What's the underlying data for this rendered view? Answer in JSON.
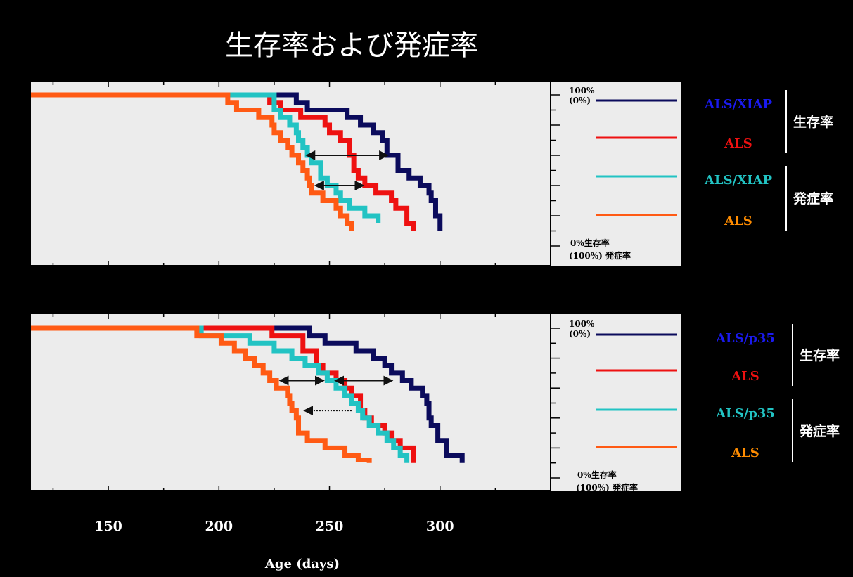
{
  "title": "生存率および発症率",
  "xlabel": "Age (days)",
  "colors": {
    "blue": "#0b0b5c",
    "red": "#ee1111",
    "cyan": "#22c3c3",
    "orange": "#ff5a14"
  },
  "chart_data": [
    {
      "type": "line",
      "step": true,
      "x_ticks": [
        150,
        200,
        250,
        300
      ],
      "xlim": [
        115,
        350
      ],
      "ylim": [
        0,
        100
      ],
      "y_top_label": "100%",
      "y_top_label2": "(0%)",
      "y_bottom_label": "0%生存率",
      "y_bottom_label2": "(100%) 発症率",
      "groups": [
        {
          "label": "生存率",
          "series": [
            0,
            1
          ]
        },
        {
          "label": "発症率",
          "series": [
            2,
            3
          ]
        }
      ],
      "series": [
        {
          "name": "ALS/XIAP",
          "legend_color": "#1a1aee",
          "color": "#0b0b5c",
          "points": [
            [
              0,
              100
            ],
            [
              232,
              100
            ],
            [
              235,
              95
            ],
            [
              240,
              90
            ],
            [
              258,
              85
            ],
            [
              264,
              80
            ],
            [
              270,
              75
            ],
            [
              274,
              70
            ],
            [
              276,
              60
            ],
            [
              281,
              50
            ],
            [
              286,
              45
            ],
            [
              291,
              40
            ],
            [
              295,
              35
            ],
            [
              296,
              30
            ],
            [
              298,
              20
            ],
            [
              300,
              10
            ]
          ]
        },
        {
          "name": "ALS",
          "legend_color": "#ee1111",
          "color": "#ee1111",
          "points": [
            [
              0,
              100
            ],
            [
              220,
              100
            ],
            [
              223,
              95
            ],
            [
              228,
              90
            ],
            [
              237,
              85
            ],
            [
              248,
              80
            ],
            [
              250,
              75
            ],
            [
              255,
              70
            ],
            [
              259,
              60
            ],
            [
              261,
              50
            ],
            [
              263,
              45
            ],
            [
              266,
              40
            ],
            [
              271,
              35
            ],
            [
              278,
              30
            ],
            [
              280,
              25
            ],
            [
              285,
              15
            ],
            [
              288,
              10
            ]
          ]
        },
        {
          "name": "ALS/XIAP",
          "legend_color": "#22c3c3",
          "color": "#22c3c3",
          "points": [
            [
              0,
              100
            ],
            [
              220,
              100
            ],
            [
              225,
              90
            ],
            [
              228,
              85
            ],
            [
              232,
              80
            ],
            [
              235,
              75
            ],
            [
              236,
              70
            ],
            [
              238,
              65
            ],
            [
              240,
              60
            ],
            [
              242,
              55
            ],
            [
              246,
              45
            ],
            [
              249,
              40
            ],
            [
              253,
              35
            ],
            [
              255,
              30
            ],
            [
              259,
              25
            ],
            [
              266,
              20
            ],
            [
              272,
              15
            ]
          ]
        },
        {
          "name": "ALS",
          "legend_color": "#ff8c00",
          "color": "#ff5a14",
          "points": [
            [
              0,
              100
            ],
            [
              202,
              100
            ],
            [
              204,
              95
            ],
            [
              208,
              90
            ],
            [
              218,
              85
            ],
            [
              224,
              80
            ],
            [
              225,
              75
            ],
            [
              228,
              70
            ],
            [
              231,
              65
            ],
            [
              233,
              60
            ],
            [
              236,
              55
            ],
            [
              238,
              50
            ],
            [
              240,
              45
            ],
            [
              241,
              40
            ],
            [
              242,
              35
            ],
            [
              247,
              30
            ],
            [
              253,
              25
            ],
            [
              255,
              20
            ],
            [
              258,
              15
            ],
            [
              260,
              10
            ]
          ]
        }
      ],
      "arrows": [
        {
          "x1": 240,
          "x2": 276,
          "y": 60,
          "style": "solid"
        },
        {
          "x1": 244,
          "x2": 265,
          "y": 40,
          "style": "solid"
        }
      ]
    },
    {
      "type": "line",
      "step": true,
      "x_ticks": [
        150,
        200,
        250,
        300
      ],
      "xlim": [
        115,
        350
      ],
      "ylim": [
        0,
        100
      ],
      "y_top_label": "100%",
      "y_top_label2": "(0%)",
      "y_bottom_label": "0%生存率",
      "y_bottom_label2": "(100%) 発症率",
      "groups": [
        {
          "label": "生存率",
          "series": [
            0,
            1
          ]
        },
        {
          "label": "発症率",
          "series": [
            2,
            3
          ]
        }
      ],
      "series": [
        {
          "name": "ALS/p35",
          "legend_color": "#1a1aee",
          "color": "#0b0b5c",
          "points": [
            [
              0,
              100
            ],
            [
              224,
              100
            ],
            [
              241,
              95
            ],
            [
              248,
              90
            ],
            [
              262,
              85
            ],
            [
              270,
              80
            ],
            [
              275,
              75
            ],
            [
              278,
              70
            ],
            [
              283,
              65
            ],
            [
              287,
              60
            ],
            [
              292,
              55
            ],
            [
              294,
              50
            ],
            [
              295,
              40
            ],
            [
              296,
              35
            ],
            [
              299,
              25
            ],
            [
              303,
              15
            ],
            [
              310,
              10
            ]
          ]
        },
        {
          "name": "ALS",
          "legend_color": "#ee1111",
          "color": "#ee1111",
          "points": [
            [
              0,
              100
            ],
            [
              220,
              100
            ],
            [
              224,
              95
            ],
            [
              238,
              85
            ],
            [
              244,
              75
            ],
            [
              247,
              70
            ],
            [
              253,
              65
            ],
            [
              257,
              60
            ],
            [
              260,
              55
            ],
            [
              264,
              45
            ],
            [
              266,
              40
            ],
            [
              269,
              35
            ],
            [
              275,
              30
            ],
            [
              278,
              25
            ],
            [
              282,
              20
            ],
            [
              288,
              10
            ]
          ]
        },
        {
          "name": "ALS/p35",
          "legend_color": "#22c3c3",
          "color": "#22c3c3",
          "points": [
            [
              0,
              100
            ],
            [
              190,
              100
            ],
            [
              192,
              95
            ],
            [
              214,
              90
            ],
            [
              225,
              85
            ],
            [
              233,
              80
            ],
            [
              239,
              75
            ],
            [
              245,
              70
            ],
            [
              249,
              65
            ],
            [
              253,
              60
            ],
            [
              257,
              55
            ],
            [
              260,
              50
            ],
            [
              263,
              45
            ],
            [
              265,
              40
            ],
            [
              268,
              35
            ],
            [
              272,
              30
            ],
            [
              276,
              25
            ],
            [
              279,
              20
            ],
            [
              282,
              15
            ],
            [
              285,
              10
            ]
          ]
        },
        {
          "name": "ALS",
          "legend_color": "#ff8c00",
          "color": "#ff5a14",
          "points": [
            [
              0,
              100
            ],
            [
              187,
              100
            ],
            [
              190,
              95
            ],
            [
              201,
              90
            ],
            [
              207,
              85
            ],
            [
              212,
              80
            ],
            [
              216,
              75
            ],
            [
              220,
              70
            ],
            [
              223,
              65
            ],
            [
              226,
              60
            ],
            [
              231,
              55
            ],
            [
              232,
              50
            ],
            [
              233,
              45
            ],
            [
              235,
              40
            ],
            [
              236,
              30
            ],
            [
              240,
              25
            ],
            [
              248,
              20
            ],
            [
              257,
              15
            ],
            [
              263,
              12
            ],
            [
              268,
              10
            ]
          ]
        }
      ],
      "arrows": [
        {
          "x1": 228,
          "x2": 247,
          "y": 65,
          "style": "solid"
        },
        {
          "x1": 253,
          "x2": 278,
          "y": 65,
          "style": "solid"
        },
        {
          "x1": 239,
          "x2": 260,
          "y": 45,
          "style": "dotted"
        }
      ]
    }
  ]
}
